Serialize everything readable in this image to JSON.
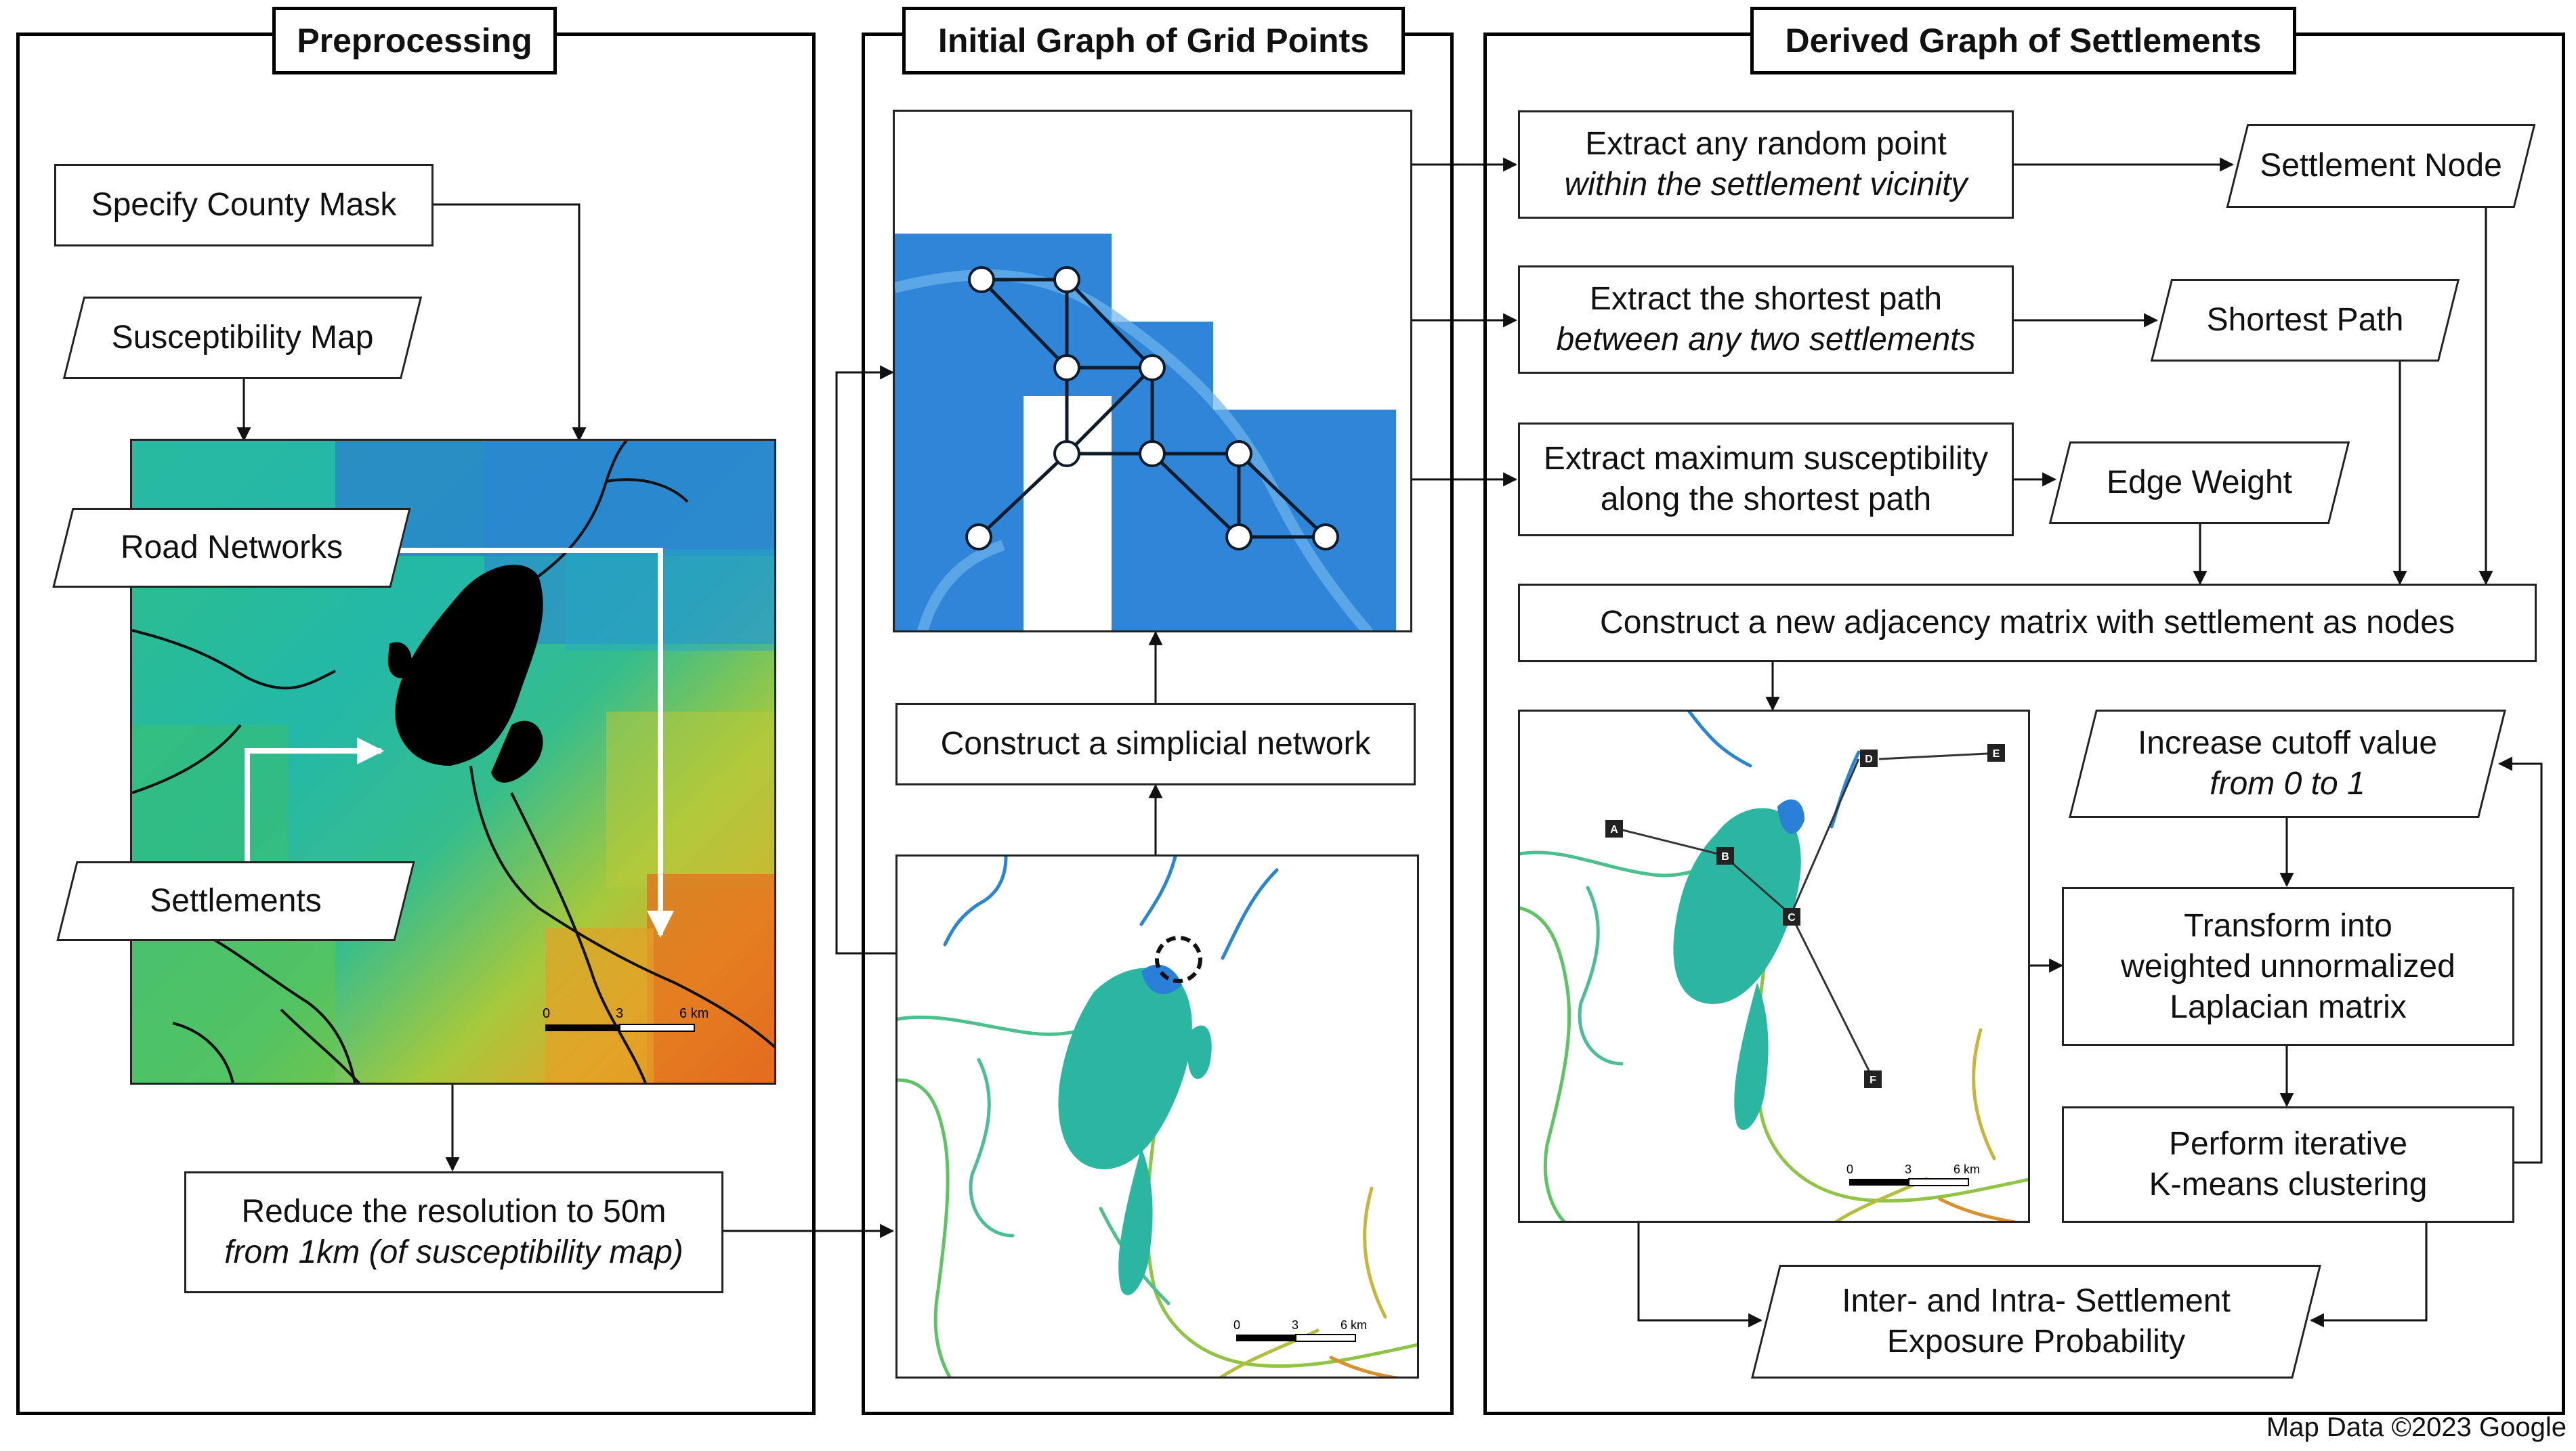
{
  "panels": {
    "preprocessing": "Preprocessing",
    "initial_graph": "Initial Graph of Grid Points",
    "derived_graph": "Derived Graph of Settlements"
  },
  "preprocessing": {
    "county_mask": "Specify County Mask",
    "susceptibility_map": "Susceptibility Map",
    "road_networks": "Road Networks",
    "settlements": "Settlements",
    "reduce_line1": "Reduce the resolution to 50m",
    "reduce_line2": "from 1km (of susceptibility map)",
    "scale": {
      "t0": "0",
      "t1": "3",
      "t2": "6 km"
    }
  },
  "initial_graph": {
    "simplicial": "Construct a simplicial network",
    "scale": {
      "t0": "0",
      "t1": "3",
      "t2": "6 km"
    }
  },
  "derived_graph": {
    "extract_point_line1": "Extract any random point",
    "extract_point_line2": "within the settlement vicinity",
    "settlement_node": "Settlement Node",
    "shortest_line1": "Extract the shortest path",
    "shortest_line2": "between any two settlements",
    "shortest_path": "Shortest Path",
    "maxsus_line1": "Extract maximum susceptibility",
    "maxsus_line2": "along the shortest path",
    "edge_weight": "Edge Weight",
    "adjacency": "Construct a new adjacency matrix with settlement as nodes",
    "cutoff_line1": "Increase cutoff value",
    "cutoff_line2": "from 0 to 1",
    "transform_line1": "Transform into",
    "transform_line2": "weighted unnormalized",
    "transform_line3": "Laplacian matrix",
    "kmeans_line1": "Perform iterative",
    "kmeans_line2": "K-means clustering",
    "exposure_line1": "Inter- and Intra- Settlement",
    "exposure_line2": "Exposure Probability",
    "markers": [
      "A",
      "B",
      "C",
      "D",
      "E",
      "F"
    ],
    "scale": {
      "t0": "0",
      "t1": "3",
      "t2": "6 km"
    }
  },
  "credit": "Map Data ©2023 Google"
}
